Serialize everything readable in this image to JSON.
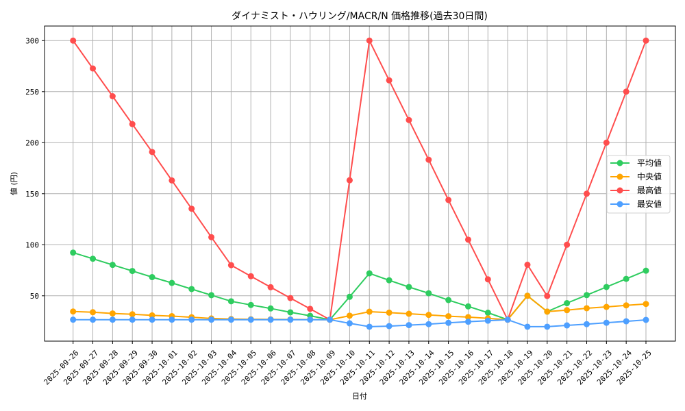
{
  "chart_data": {
    "type": "line",
    "title": "ダイナミスト・ハウリング/MACR/N 価格推移(過去30日間)",
    "xlabel": "日付",
    "ylabel": "値 (円)",
    "ylim": [
      15,
      315
    ],
    "yticks": [
      50,
      100,
      150,
      200,
      250,
      300
    ],
    "grid": true,
    "legend_position": "center right",
    "categories": [
      "2025-09-26",
      "2025-09-27",
      "2025-09-28",
      "2025-09-29",
      "2025-09-30",
      "2025-10-01",
      "2025-10-02",
      "2025-10-03",
      "2025-10-04",
      "2025-10-05",
      "2025-10-06",
      "2025-10-07",
      "2025-10-08",
      "2025-10-09",
      "2025-10-10",
      "2025-10-11",
      "2025-10-12",
      "2025-10-13",
      "2025-10-14",
      "2025-10-15",
      "2025-10-16",
      "2025-10-17",
      "2025-10-18",
      "2025-10-19",
      "2025-10-20",
      "2025-10-21",
      "2025-10-22",
      "2025-10-23",
      "2025-10-24",
      "2025-10-25"
    ],
    "series": [
      {
        "name": "平均値",
        "color": "#2ecc5f",
        "values": [
          92.3,
          86.3,
          80.3,
          74.3,
          68.3,
          62.6,
          56.6,
          50.6,
          44.6,
          41.0,
          37.6,
          33.8,
          30.4,
          26.6,
          49.0,
          72.0,
          65.2,
          58.6,
          52.5,
          45.8,
          39.6,
          33.4,
          26.6,
          50.0,
          34.5,
          42.8,
          50.7,
          58.6,
          66.6,
          74.6
        ]
      },
      {
        "name": "中央値",
        "color": "#ffa500",
        "values": [
          34.6,
          33.9,
          32.7,
          31.9,
          30.8,
          30.1,
          29.0,
          27.8,
          27.2,
          27.0,
          26.9,
          26.8,
          26.7,
          26.6,
          30.5,
          34.4,
          33.5,
          32.4,
          31.3,
          30.0,
          29.1,
          27.9,
          26.6,
          50.0,
          34.5,
          35.9,
          37.8,
          39.1,
          40.6,
          42.0
        ]
      },
      {
        "name": "最高値",
        "color": "#ff4d4d",
        "values": [
          300,
          272.7,
          245.5,
          218.2,
          190.9,
          163.0,
          135.3,
          107.4,
          80.0,
          69.2,
          58.4,
          47.8,
          37.2,
          26.6,
          163.2,
          300,
          261.1,
          222.2,
          183.3,
          143.9,
          105.0,
          66.1,
          26.6,
          80.4,
          49.8,
          100,
          150,
          200,
          250,
          300
        ]
      },
      {
        "name": "最安値",
        "color": "#4d9fff",
        "values": [
          26.6,
          26.6,
          26.6,
          26.6,
          26.6,
          26.6,
          26.6,
          26.6,
          26.6,
          26.6,
          26.6,
          26.6,
          26.6,
          26.6,
          23.0,
          19.7,
          20.3,
          21.3,
          22.2,
          23.5,
          24.6,
          25.6,
          26.6,
          19.7,
          19.7,
          21.0,
          22.2,
          23.6,
          25.0,
          26.4
        ]
      }
    ]
  }
}
